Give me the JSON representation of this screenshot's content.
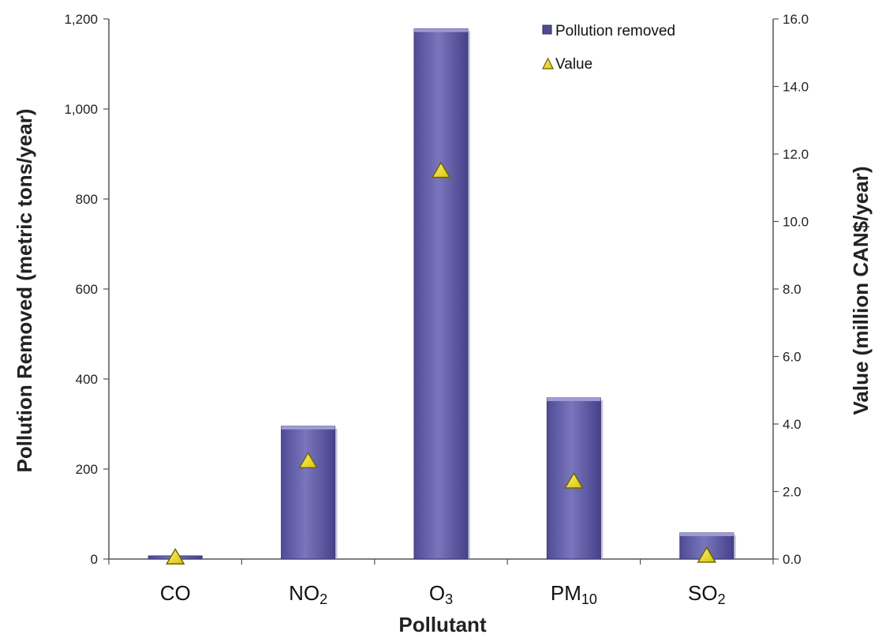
{
  "chart_data": {
    "type": "bar",
    "categories": [
      "CO",
      "NO2",
      "O3",
      "PM10",
      "SO2"
    ],
    "category_labels": [
      {
        "base": "CO",
        "sub": ""
      },
      {
        "base": "NO",
        "sub": "2"
      },
      {
        "base": "O",
        "sub": "3"
      },
      {
        "base": "PM",
        "sub": "10"
      },
      {
        "base": "SO",
        "sub": "2"
      }
    ],
    "series": [
      {
        "name": "Pollution removed",
        "kind": "bar",
        "axis": "left",
        "values": [
          7,
          295,
          1178,
          358,
          58
        ],
        "color": "#6b67ad"
      },
      {
        "name": "Value",
        "kind": "marker",
        "axis": "right",
        "values": [
          0.05,
          2.9,
          11.5,
          2.3,
          0.1
        ],
        "color": "#f0e020"
      }
    ],
    "xlabel": "Pollutant",
    "ylabel": "Pollution Removed  (metric tons/year)",
    "y2label": "Value  (million CAN$/year)",
    "ylim": [
      0,
      1200
    ],
    "y2lim": [
      0,
      16
    ],
    "yticks": [
      "0",
      "200",
      "400",
      "600",
      "800",
      "1,000",
      "1,200"
    ],
    "y2ticks": [
      "0.0",
      "2.0",
      "4.0",
      "6.0",
      "8.0",
      "10.0",
      "12.0",
      "14.0",
      "16.0"
    ],
    "grid": false,
    "legend_position": "top-right"
  }
}
